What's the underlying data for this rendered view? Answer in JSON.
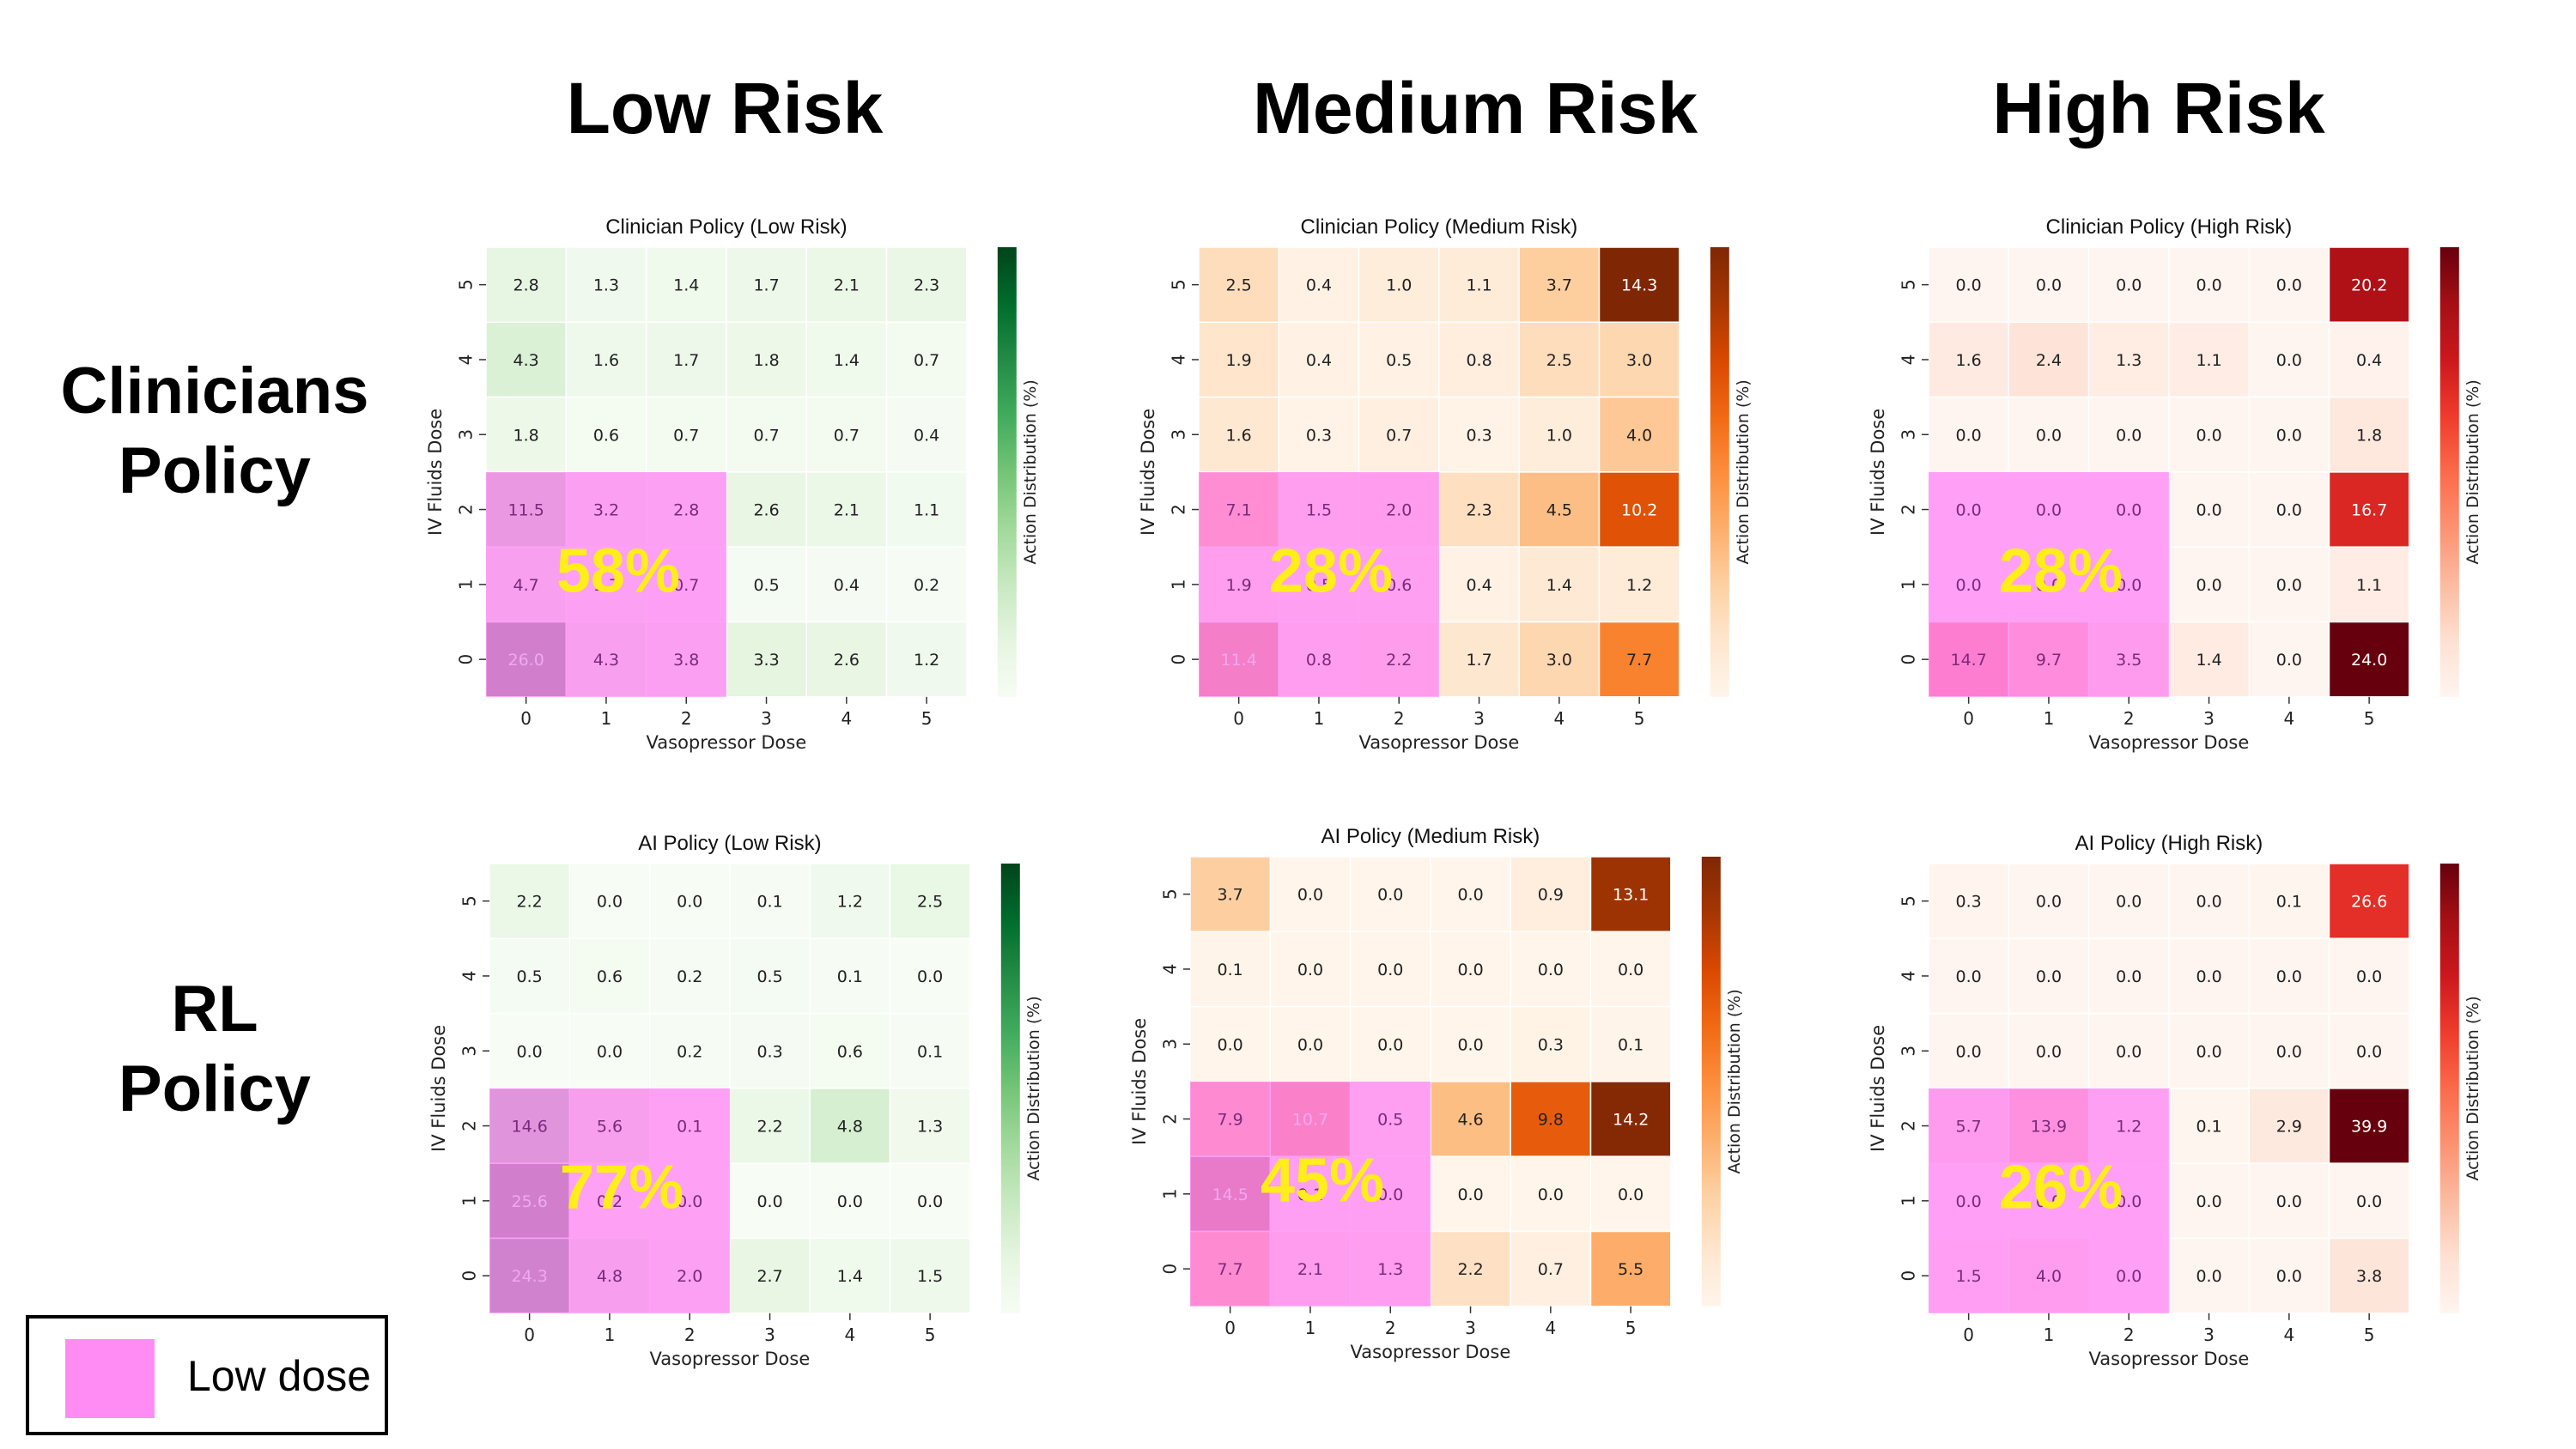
{
  "column_headers": [
    "Low Risk",
    "Medium Risk",
    "High Risk"
  ],
  "row_headers": [
    {
      "line1": "Clinicians",
      "line2": "Policy"
    },
    {
      "line1": "RL",
      "line2": "Policy"
    }
  ],
  "legend": {
    "label": "Low dose",
    "color": "#ff8cf5"
  },
  "colors": {
    "low_dose_overlay": "#ff8cf5",
    "percent_label": "#ffee1a"
  },
  "chart_data": [
    {
      "type": "heatmap",
      "title": "Clinician Policy (Low Risk)",
      "xlabel": "Vasopressor Dose",
      "ylabel": "IV Fluids Dose",
      "colorbar_label": "Action Distribution (%)",
      "colormap": "Greens",
      "x_ticks": [
        "0",
        "1",
        "2",
        "3",
        "4",
        "5"
      ],
      "y_ticks": [
        "5",
        "4",
        "3",
        "2",
        "1",
        "0"
      ],
      "values": [
        [
          2.8,
          1.3,
          1.4,
          1.7,
          2.1,
          2.3
        ],
        [
          4.3,
          1.6,
          1.7,
          1.8,
          1.4,
          0.7
        ],
        [
          1.8,
          0.6,
          0.7,
          0.7,
          0.7,
          0.4
        ],
        [
          11.5,
          3.2,
          2.8,
          2.6,
          2.1,
          1.1
        ],
        [
          4.7,
          1.7,
          0.7,
          0.5,
          0.4,
          0.2
        ],
        [
          26.0,
          4.3,
          3.8,
          3.3,
          2.6,
          1.2
        ]
      ],
      "low_dose_region": {
        "x_doses": [
          0,
          1,
          2
        ],
        "y_doses": [
          0,
          1,
          2
        ]
      },
      "low_dose_percent": "58%"
    },
    {
      "type": "heatmap",
      "title": "Clinician Policy (Medium Risk)",
      "xlabel": "Vasopressor Dose",
      "ylabel": "IV Fluids Dose",
      "colorbar_label": "Action Distribution (%)",
      "colormap": "Oranges",
      "x_ticks": [
        "0",
        "1",
        "2",
        "3",
        "4",
        "5"
      ],
      "y_ticks": [
        "5",
        "4",
        "3",
        "2",
        "1",
        "0"
      ],
      "values": [
        [
          2.5,
          0.4,
          1.0,
          1.1,
          3.7,
          14.3
        ],
        [
          1.9,
          0.4,
          0.5,
          0.8,
          2.5,
          3.0
        ],
        [
          1.6,
          0.3,
          0.7,
          0.3,
          1.0,
          4.0
        ],
        [
          7.1,
          1.5,
          2.0,
          2.3,
          4.5,
          10.2
        ],
        [
          1.9,
          0.5,
          0.6,
          0.4,
          1.4,
          1.2
        ],
        [
          11.4,
          0.8,
          2.2,
          1.7,
          3.0,
          7.7
        ]
      ],
      "low_dose_region": {
        "x_doses": [
          0,
          1,
          2
        ],
        "y_doses": [
          0,
          1,
          2
        ]
      },
      "low_dose_percent": "28%"
    },
    {
      "type": "heatmap",
      "title": "Clinician Policy (High Risk)",
      "xlabel": "Vasopressor Dose",
      "ylabel": "IV Fluids Dose",
      "colorbar_label": "Action Distribution (%)",
      "colormap": "Reds",
      "x_ticks": [
        "0",
        "1",
        "2",
        "3",
        "4",
        "5"
      ],
      "y_ticks": [
        "5",
        "4",
        "3",
        "2",
        "1",
        "0"
      ],
      "values": [
        [
          0.0,
          0.0,
          0.0,
          0.0,
          0.0,
          20.2
        ],
        [
          1.6,
          2.4,
          1.3,
          1.1,
          0.0,
          0.4
        ],
        [
          0.0,
          0.0,
          0.0,
          0.0,
          0.0,
          1.8
        ],
        [
          0.0,
          0.0,
          0.0,
          0.0,
          0.0,
          16.7
        ],
        [
          0.0,
          0.0,
          0.0,
          0.0,
          0.0,
          1.1
        ],
        [
          14.7,
          9.7,
          3.5,
          1.4,
          0.0,
          24.0
        ]
      ],
      "low_dose_region": {
        "x_doses": [
          0,
          1,
          2
        ],
        "y_doses": [
          0,
          1,
          2
        ]
      },
      "low_dose_percent": "28%"
    },
    {
      "type": "heatmap",
      "title": "AI Policy (Low Risk)",
      "xlabel": "Vasopressor Dose",
      "ylabel": "IV Fluids Dose",
      "colorbar_label": "Action Distribution (%)",
      "colormap": "Greens",
      "x_ticks": [
        "0",
        "1",
        "2",
        "3",
        "4",
        "5"
      ],
      "y_ticks": [
        "5",
        "4",
        "3",
        "2",
        "1",
        "0"
      ],
      "values": [
        [
          2.2,
          0.0,
          0.0,
          0.1,
          1.2,
          2.5
        ],
        [
          0.5,
          0.6,
          0.2,
          0.5,
          0.1,
          0.0
        ],
        [
          0.0,
          0.0,
          0.2,
          0.3,
          0.6,
          0.1
        ],
        [
          14.6,
          5.6,
          0.1,
          2.2,
          4.8,
          1.3
        ],
        [
          25.6,
          0.2,
          0.0,
          0.0,
          0.0,
          0.0
        ],
        [
          24.3,
          4.8,
          2.0,
          2.7,
          1.4,
          1.5
        ]
      ],
      "low_dose_region": {
        "x_doses": [
          0,
          1,
          2
        ],
        "y_doses": [
          0,
          1,
          2
        ]
      },
      "low_dose_percent": "77%"
    },
    {
      "type": "heatmap",
      "title": "AI Policy (Medium Risk)",
      "xlabel": "Vasopressor Dose",
      "ylabel": "IV Fluids Dose",
      "colorbar_label": "Action Distribution (%)",
      "colormap": "Oranges",
      "x_ticks": [
        "0",
        "1",
        "2",
        "3",
        "4",
        "5"
      ],
      "y_ticks": [
        "5",
        "4",
        "3",
        "2",
        "1",
        "0"
      ],
      "values": [
        [
          3.7,
          0.0,
          0.0,
          0.0,
          0.9,
          13.1
        ],
        [
          0.1,
          0.0,
          0.0,
          0.0,
          0.0,
          0.0
        ],
        [
          0.0,
          0.0,
          0.0,
          0.0,
          0.3,
          0.1
        ],
        [
          7.9,
          10.7,
          0.5,
          4.6,
          9.8,
          14.2
        ],
        [
          14.5,
          0.1,
          0.0,
          0.0,
          0.0,
          0.0
        ],
        [
          7.7,
          2.1,
          1.3,
          2.2,
          0.7,
          5.5
        ]
      ],
      "low_dose_region": {
        "x_doses": [
          0,
          1,
          2
        ],
        "y_doses": [
          0,
          1,
          2
        ]
      },
      "low_dose_percent": "45%"
    },
    {
      "type": "heatmap",
      "title": "AI Policy (High Risk)",
      "xlabel": "Vasopressor Dose",
      "ylabel": "IV Fluids Dose",
      "colorbar_label": "Action Distribution (%)",
      "colormap": "Reds",
      "x_ticks": [
        "0",
        "1",
        "2",
        "3",
        "4",
        "5"
      ],
      "y_ticks": [
        "5",
        "4",
        "3",
        "2",
        "1",
        "0"
      ],
      "values": [
        [
          0.3,
          0.0,
          0.0,
          0.0,
          0.1,
          26.6
        ],
        [
          0.0,
          0.0,
          0.0,
          0.0,
          0.0,
          0.0
        ],
        [
          0.0,
          0.0,
          0.0,
          0.0,
          0.0,
          0.0
        ],
        [
          5.7,
          13.9,
          1.2,
          0.1,
          2.9,
          39.9
        ],
        [
          0.0,
          0.0,
          0.0,
          0.0,
          0.0,
          0.0
        ],
        [
          1.5,
          4.0,
          0.0,
          0.0,
          0.0,
          3.8
        ]
      ],
      "low_dose_region": {
        "x_doses": [
          0,
          1,
          2
        ],
        "y_doses": [
          0,
          1,
          2
        ]
      },
      "low_dose_percent": "26%"
    }
  ]
}
